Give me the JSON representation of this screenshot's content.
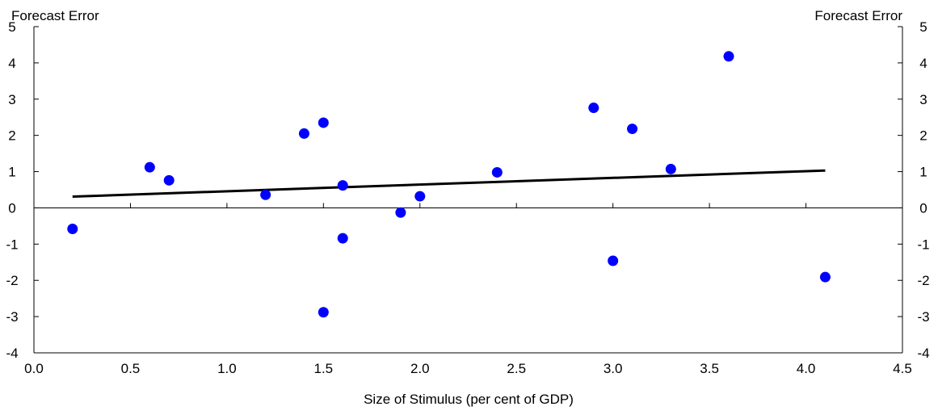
{
  "chart_data": {
    "type": "scatter",
    "ylabel_left": "Forecast Error",
    "ylabel_right": "Forecast Error",
    "xlabel": "Size of Stimulus (per cent of GDP)",
    "xlim": [
      0,
      4.5
    ],
    "ylim": [
      -4,
      5
    ],
    "x_ticks": [
      "0.0",
      "0.5",
      "1.0",
      "1.5",
      "2.0",
      "2.5",
      "3.0",
      "3.5",
      "4.0",
      "4.5"
    ],
    "y_ticks": [
      "-4",
      "-3",
      "-2",
      "-1",
      "0",
      "1",
      "2",
      "3",
      "4",
      "5"
    ],
    "grid": false,
    "series": [
      {
        "marker_color": "#0000FF",
        "points": [
          {
            "x": 0.2,
            "y": -0.58
          },
          {
            "x": 0.6,
            "y": 1.12
          },
          {
            "x": 0.7,
            "y": 0.76
          },
          {
            "x": 1.2,
            "y": 0.36
          },
          {
            "x": 1.4,
            "y": 2.05
          },
          {
            "x": 1.5,
            "y": 2.35
          },
          {
            "x": 1.5,
            "y": -2.88
          },
          {
            "x": 1.6,
            "y": 0.62
          },
          {
            "x": 1.6,
            "y": -0.84
          },
          {
            "x": 1.9,
            "y": -0.13
          },
          {
            "x": 2.0,
            "y": 0.32
          },
          {
            "x": 2.4,
            "y": 0.98
          },
          {
            "x": 2.9,
            "y": 2.76
          },
          {
            "x": 3.0,
            "y": -1.46
          },
          {
            "x": 3.1,
            "y": 2.18
          },
          {
            "x": 3.3,
            "y": 1.07
          },
          {
            "x": 3.6,
            "y": 4.18
          },
          {
            "x": 4.1,
            "y": -1.91
          }
        ]
      }
    ],
    "trendline": {
      "color": "#000000",
      "points": [
        {
          "x": 0.2,
          "y": 0.31
        },
        {
          "x": 4.1,
          "y": 1.03
        }
      ]
    }
  }
}
